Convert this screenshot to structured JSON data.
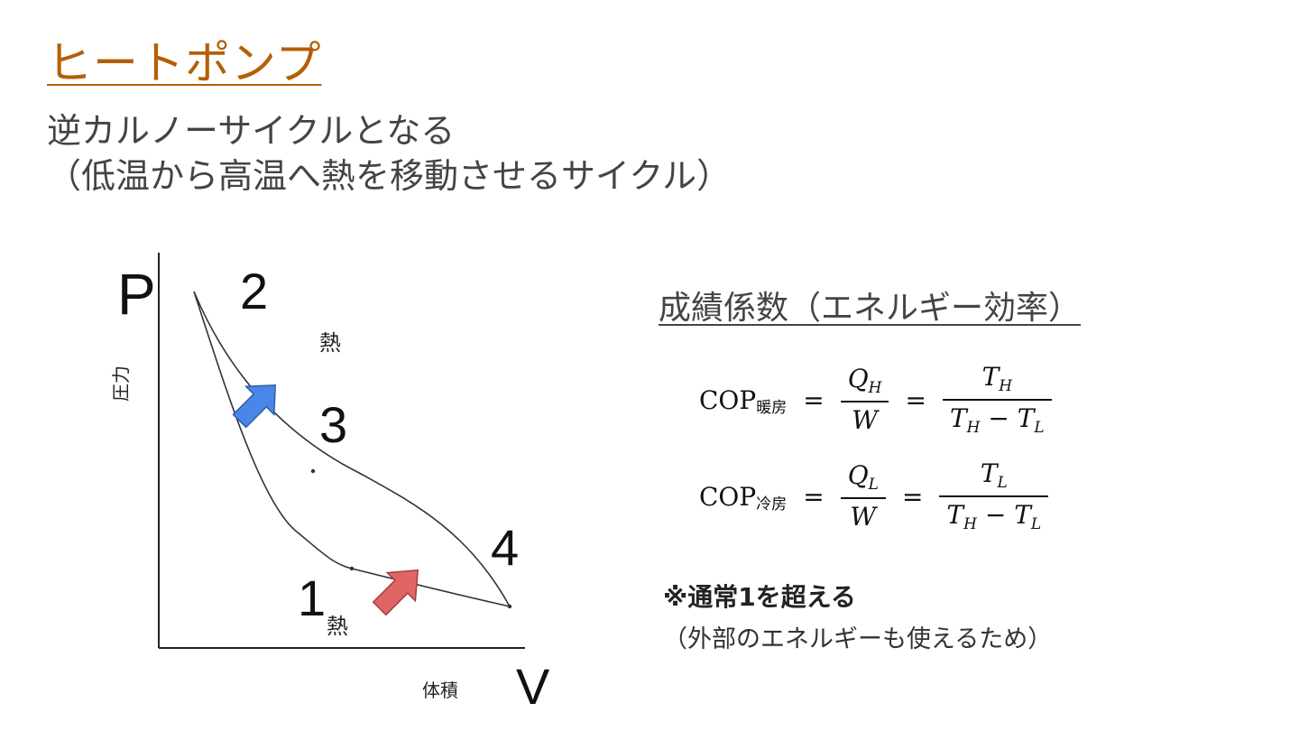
{
  "slide": {
    "title": "ヒートポンプ",
    "subtitle_line1": "逆カルノーサイクルとなる",
    "subtitle_line2": "（低温から高温へ熱を移動させるサイクル）"
  },
  "diagram": {
    "axis_y_symbol": "P",
    "axis_y_label": "圧力",
    "axis_x_symbol": "V",
    "axis_x_label": "体積",
    "state_labels": [
      "1",
      "2",
      "3",
      "4"
    ],
    "heat_label_top": "熱",
    "heat_label_bottom": "熱",
    "arrow_colors": {
      "heat_out": "#4a86e8",
      "heat_in": "#e06666"
    }
  },
  "cop": {
    "heading": "成績係数（エネルギー効率）",
    "heating": {
      "lhs": "COP",
      "lhs_sub": "暖房",
      "eq": "=",
      "frac1_num": "Q",
      "frac1_num_sub": "H",
      "frac1_den": "W",
      "frac2_num": "T",
      "frac2_num_sub": "H",
      "frac2_den_a": "T",
      "frac2_den_a_sub": "H",
      "frac2_den_op": " − ",
      "frac2_den_b": "T",
      "frac2_den_b_sub": "L"
    },
    "cooling": {
      "lhs": "COP",
      "lhs_sub": "冷房",
      "eq": "=",
      "frac1_num": "Q",
      "frac1_num_sub": "L",
      "frac1_den": "W",
      "frac2_num": "T",
      "frac2_num_sub": "L",
      "frac2_den_a": "T",
      "frac2_den_a_sub": "H",
      "frac2_den_op": " − ",
      "frac2_den_b": "T",
      "frac2_den_b_sub": "L"
    },
    "note_bold": "※通常1を超える",
    "note": "（外部のエネルギーも使えるため）"
  }
}
